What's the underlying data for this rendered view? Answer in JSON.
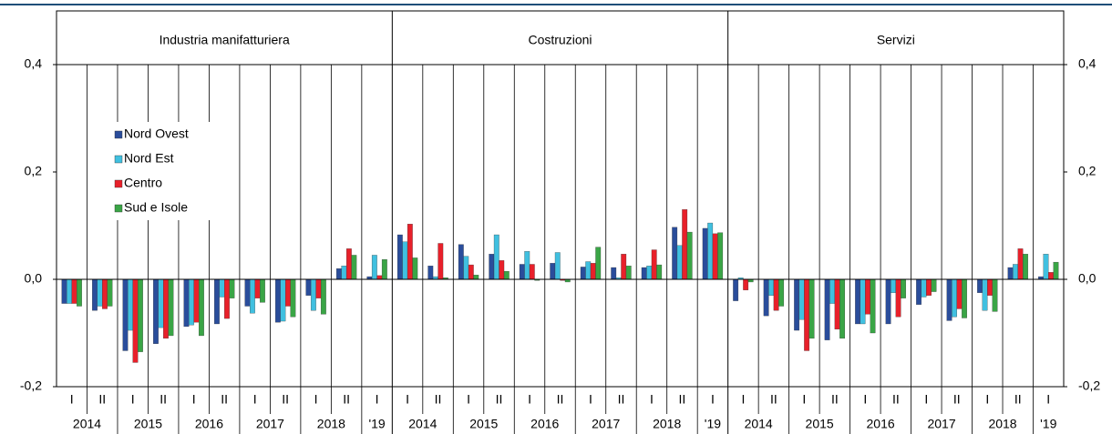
{
  "chart_data": [
    {
      "type": "bar",
      "title": "Industria  manifatturiera",
      "categories": [
        "I",
        "II",
        "I",
        "II",
        "I",
        "II",
        "I",
        "II",
        "I",
        "II",
        "I"
      ],
      "years": [
        "2014",
        "2015",
        "2016",
        "2017",
        "2018",
        "'19"
      ],
      "ylim": [
        -0.2,
        0.5
      ],
      "yticks": [
        {
          "value": -0.2,
          "label": "-0,2"
        },
        {
          "value": 0,
          "label": "0,0"
        },
        {
          "value": 0.2,
          "label": "0,2"
        },
        {
          "value": 0.4,
          "label": "0,4"
        }
      ],
      "legend": "upper left",
      "series": [
        {
          "name": "Nord Ovest",
          "color": "#2a4d9b",
          "values": [
            -0.045,
            -0.058,
            -0.133,
            -0.12,
            -0.088,
            -0.083,
            -0.05,
            -0.08,
            -0.03,
            0.02,
            0.005
          ]
        },
        {
          "name": "Nord Est",
          "color": "#40c0e0",
          "values": [
            -0.045,
            -0.05,
            -0.095,
            -0.09,
            -0.085,
            -0.033,
            -0.063,
            -0.078,
            -0.058,
            0.025,
            0.045
          ]
        },
        {
          "name": "Centro",
          "color": "#e8202a",
          "values": [
            -0.045,
            -0.055,
            -0.155,
            -0.11,
            -0.08,
            -0.073,
            -0.035,
            -0.05,
            -0.035,
            0.057,
            0.007
          ]
        },
        {
          "name": "Sud e Isole",
          "color": "#3aa546",
          "values": [
            -0.05,
            -0.05,
            -0.135,
            -0.105,
            -0.105,
            -0.035,
            -0.043,
            -0.07,
            -0.065,
            0.045,
            0.037
          ]
        }
      ]
    },
    {
      "type": "bar",
      "title": "Costruzioni",
      "categories": [
        "I",
        "II",
        "I",
        "II",
        "I",
        "II",
        "I",
        "II",
        "I",
        "II",
        "I"
      ],
      "years": [
        "2014",
        "2015",
        "2016",
        "2017",
        "2018",
        "'19"
      ],
      "ylim": [
        -0.2,
        0.5
      ],
      "series": [
        {
          "name": "Nord Ovest",
          "color": "#2a4d9b",
          "values": [
            0.083,
            0.025,
            0.065,
            0.047,
            0.028,
            0.03,
            0.023,
            0.022,
            0.022,
            0.097,
            0.095
          ]
        },
        {
          "name": "Nord Est",
          "color": "#40c0e0",
          "values": [
            0.07,
            0.005,
            0.043,
            0.083,
            0.052,
            0.05,
            0.033,
            0.003,
            0.025,
            0.063,
            0.105
          ]
        },
        {
          "name": "Centro",
          "color": "#e8202a",
          "values": [
            0.103,
            0.067,
            0.027,
            0.035,
            0.028,
            -0.002,
            0.03,
            0.047,
            0.055,
            0.13,
            0.085
          ]
        },
        {
          "name": "Sud e Isole",
          "color": "#3aa546",
          "values": [
            0.04,
            0.003,
            0.008,
            0.015,
            -0.002,
            -0.005,
            0.06,
            0.025,
            0.027,
            0.088,
            0.087
          ]
        }
      ]
    },
    {
      "type": "bar",
      "title": "Servizi",
      "categories": [
        "I",
        "II",
        "I",
        "II",
        "I",
        "II",
        "I",
        "II",
        "I",
        "II",
        "I"
      ],
      "years": [
        "2014",
        "2015",
        "2016",
        "2017",
        "2018",
        "'19"
      ],
      "ylim": [
        -0.2,
        0.5
      ],
      "series": [
        {
          "name": "Nord Ovest",
          "color": "#2a4d9b",
          "values": [
            -0.04,
            -0.068,
            -0.095,
            -0.113,
            -0.083,
            -0.083,
            -0.047,
            -0.077,
            -0.025,
            0.022,
            0.005
          ]
        },
        {
          "name": "Nord Est",
          "color": "#40c0e0",
          "values": [
            0.003,
            -0.03,
            -0.075,
            -0.045,
            -0.083,
            -0.025,
            -0.033,
            -0.07,
            -0.058,
            0.028,
            0.047
          ]
        },
        {
          "name": "Centro",
          "color": "#e8202a",
          "values": [
            -0.02,
            -0.058,
            -0.133,
            -0.093,
            -0.065,
            -0.07,
            -0.03,
            -0.055,
            -0.03,
            0.057,
            0.013
          ]
        },
        {
          "name": "Sud e Isole",
          "color": "#3aa546",
          "values": [
            -0.005,
            -0.05,
            -0.11,
            -0.11,
            -0.1,
            -0.035,
            -0.023,
            -0.072,
            -0.06,
            0.047,
            0.032
          ]
        }
      ]
    }
  ]
}
